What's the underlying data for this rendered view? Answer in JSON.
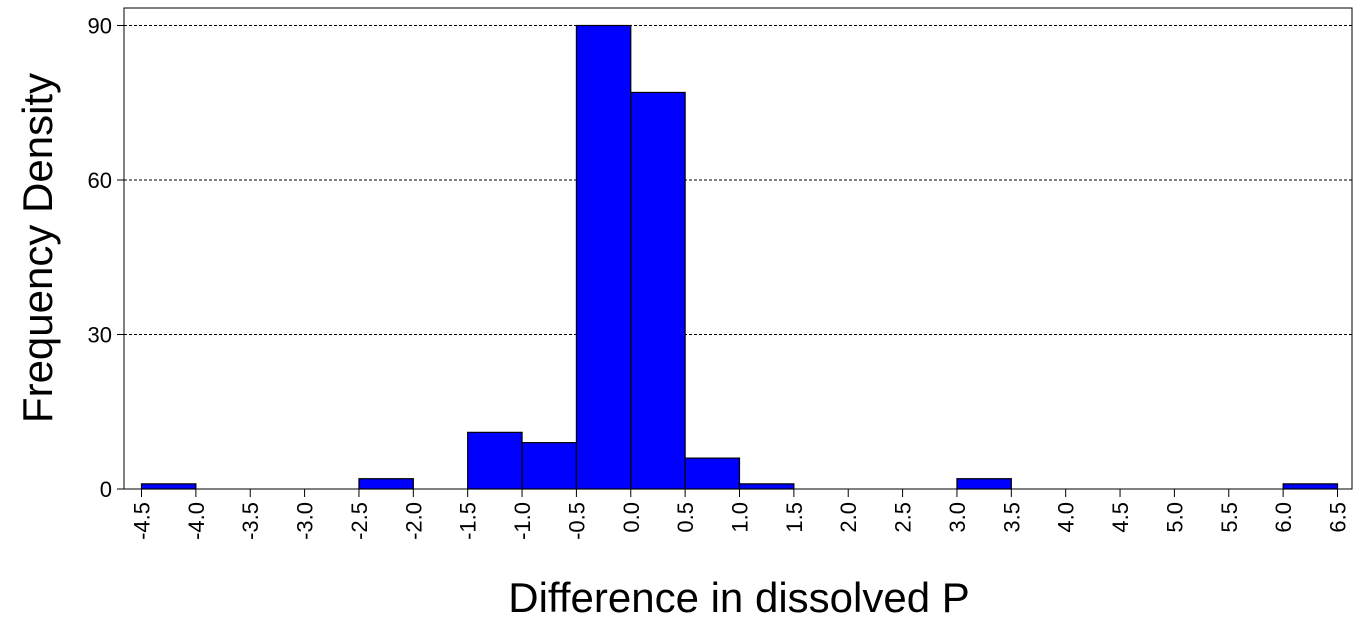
{
  "chart_data": {
    "type": "bar",
    "title": "",
    "xlabel": "Difference in dissolved P",
    "ylabel": "Frequency Density",
    "bins": [
      {
        "x0": -4.5,
        "x1": -4.0,
        "value": 1
      },
      {
        "x0": -4.0,
        "x1": -3.5,
        "value": 0
      },
      {
        "x0": -3.5,
        "x1": -3.0,
        "value": 0
      },
      {
        "x0": -3.0,
        "x1": -2.5,
        "value": 0
      },
      {
        "x0": -2.5,
        "x1": -2.0,
        "value": 2
      },
      {
        "x0": -2.0,
        "x1": -1.5,
        "value": 0
      },
      {
        "x0": -1.5,
        "x1": -1.0,
        "value": 11
      },
      {
        "x0": -1.0,
        "x1": -0.5,
        "value": 9
      },
      {
        "x0": -0.5,
        "x1": 0.0,
        "value": 90
      },
      {
        "x0": 0.0,
        "x1": 0.5,
        "value": 77
      },
      {
        "x0": 0.5,
        "x1": 1.0,
        "value": 6
      },
      {
        "x0": 1.0,
        "x1": 1.5,
        "value": 1
      },
      {
        "x0": 1.5,
        "x1": 2.0,
        "value": 0
      },
      {
        "x0": 2.0,
        "x1": 2.5,
        "value": 0
      },
      {
        "x0": 2.5,
        "x1": 3.0,
        "value": 0
      },
      {
        "x0": 3.0,
        "x1": 3.5,
        "value": 2
      },
      {
        "x0": 3.5,
        "x1": 4.0,
        "value": 0
      },
      {
        "x0": 4.0,
        "x1": 4.5,
        "value": 0
      },
      {
        "x0": 4.5,
        "x1": 5.0,
        "value": 0
      },
      {
        "x0": 5.0,
        "x1": 5.5,
        "value": 0
      },
      {
        "x0": 5.5,
        "x1": 6.0,
        "value": 0
      },
      {
        "x0": 6.0,
        "x1": 6.5,
        "value": 1
      }
    ],
    "xticks": [
      -4.5,
      -4.0,
      -3.5,
      -3.0,
      -2.5,
      -2.0,
      -1.5,
      -1.0,
      -0.5,
      0.0,
      0.5,
      1.0,
      1.5,
      2.0,
      2.5,
      3.0,
      3.5,
      4.0,
      4.5,
      5.0,
      5.5,
      6.0,
      6.5
    ],
    "xtick_labels": [
      "-4.5",
      "-4.0",
      "-3.5",
      "-3.0",
      "-2.5",
      "-2.0",
      "-1.5",
      "-1.0",
      "-0.5",
      "0.0",
      "0.5",
      "1.0",
      "1.5",
      "2.0",
      "2.5",
      "3.0",
      "3.5",
      "4.0",
      "4.5",
      "5.0",
      "5.5",
      "6.0",
      "6.5"
    ],
    "yticks": [
      0,
      30,
      60,
      90
    ],
    "ytick_labels": [
      "0",
      "30",
      "60",
      "90"
    ],
    "xlim": [
      -4.5,
      6.5
    ],
    "ylim": [
      0,
      90
    ],
    "grid": "horizontal-dotted",
    "bar_color": "#0000ff",
    "edge_color": "#000000"
  }
}
